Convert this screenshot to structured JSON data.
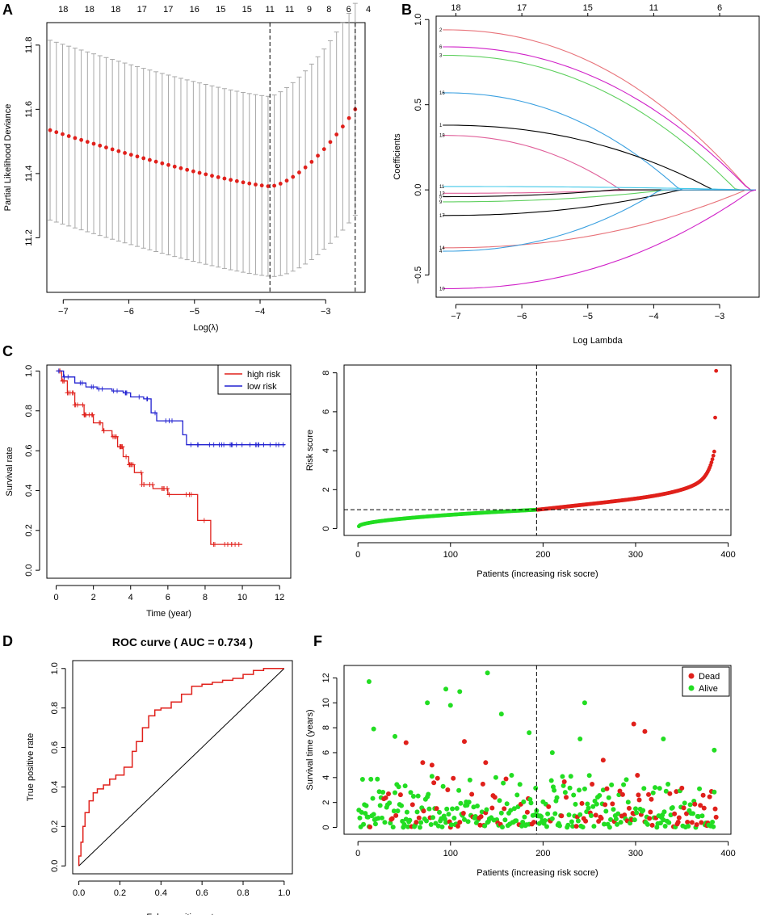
{
  "panel_labels": {
    "a": "A",
    "b": "B",
    "c": "C",
    "d": "D",
    "f": "F"
  },
  "colors": {
    "red": "#e0201b",
    "blue": "#2020d0",
    "green": "#22dd22",
    "grey": "#a8a8a8",
    "black": "#000000"
  },
  "chart_data": [
    {
      "id": "A",
      "type": "line",
      "title": "",
      "xlabel": "Log(λ)",
      "ylabel": "Partial Likelihood Deviance",
      "xlim": [
        -7.25,
        -2.4
      ],
      "ylim": [
        11.03,
        11.87
      ],
      "xticks": [
        -7,
        -6,
        -5,
        -4,
        -3
      ],
      "xtick_labels": [
        "−7",
        "−6",
        "−5",
        "−4",
        "−3"
      ],
      "yticks": [
        11.2,
        11.4,
        11.6,
        11.8
      ],
      "ytick_labels": [
        "11.2",
        "11.4",
        "11.6",
        "11.8"
      ],
      "top_labels": [
        "18",
        "18",
        "18",
        "17",
        "17",
        "16",
        "15",
        "15",
        "11",
        "11",
        "9",
        "8",
        "6",
        "4"
      ],
      "top_label_x": [
        -7.0,
        -6.6,
        -6.2,
        -5.8,
        -5.4,
        -5.0,
        -4.6,
        -4.2,
        -3.85,
        -3.55,
        -3.25,
        -2.95,
        -2.65,
        -2.35
      ],
      "vlines": [
        -3.85,
        -2.55
      ],
      "min_lambda": -3.85,
      "min_value": 11.36,
      "x_start": -7.2,
      "x_end": -2.55,
      "n_points": 50
    },
    {
      "id": "B",
      "type": "line",
      "xlabel": "Log Lambda",
      "ylabel": "Coefficients",
      "xlim": [
        -7.3,
        -2.4
      ],
      "ylim": [
        -0.63,
        1.02
      ],
      "xticks": [
        -7,
        -6,
        -5,
        -4,
        -3
      ],
      "xtick_labels": [
        "−7",
        "−6",
        "−5",
        "−4",
        "−3"
      ],
      "yticks": [
        -0.5,
        0.0,
        0.5,
        1.0
      ],
      "ytick_labels": [
        "−0.5",
        "0.0",
        "0.5",
        "1.0"
      ],
      "top_labels": [
        "18",
        "17",
        "15",
        "11",
        "6"
      ],
      "top_label_x": [
        -7.0,
        -6.0,
        -5.0,
        -4.0,
        -3.0
      ],
      "series": [
        {
          "name": "2",
          "color": "#e8737a",
          "start": 0.94,
          "zero_at": -2.55
        },
        {
          "name": "6",
          "color": "#d020c8",
          "start": 0.84,
          "zero_at": -2.55
        },
        {
          "name": "3",
          "color": "#5fd05f",
          "start": 0.79,
          "zero_at": -2.75
        },
        {
          "name": "16",
          "color": "#3aa0e0",
          "start": 0.57,
          "zero_at": -3.6
        },
        {
          "name": "1",
          "color": "#000000",
          "start": 0.38,
          "zero_at": -3.1
        },
        {
          "name": "18",
          "color": "#e0609a",
          "start": 0.32,
          "zero_at": -4.5
        },
        {
          "name": "11",
          "color": "#40c8e8",
          "start": 0.02,
          "zero_at": -2.55
        },
        {
          "name": "12",
          "color": "#e0609a",
          "start": -0.02,
          "zero_at": -4.3
        },
        {
          "name": "5",
          "color": "#000000",
          "start": -0.04,
          "zero_at": -4.6
        },
        {
          "name": "9",
          "color": "#5fd05f",
          "start": -0.07,
          "zero_at": -3.8
        },
        {
          "name": "17",
          "color": "#000000",
          "start": -0.15,
          "zero_at": -3.6
        },
        {
          "name": "14",
          "color": "#e8737a",
          "start": -0.34,
          "zero_at": -2.6
        },
        {
          "name": "4",
          "color": "#3aa0e0",
          "start": -0.36,
          "zero_at": -3.9
        },
        {
          "name": "10",
          "color": "#d020c8",
          "start": -0.58,
          "zero_at": -2.5
        }
      ]
    },
    {
      "id": "C-left",
      "type": "line",
      "xlabel": "Time (year)",
      "ylabel": "Survival rate",
      "xlim": [
        -0.5,
        12.6
      ],
      "ylim": [
        -0.04,
        1.03
      ],
      "xticks": [
        0,
        2,
        4,
        6,
        8,
        10,
        12
      ],
      "xtick_labels": [
        "0",
        "2",
        "4",
        "6",
        "8",
        "10",
        "12"
      ],
      "yticks": [
        0.0,
        0.2,
        0.4,
        0.6,
        0.8,
        1.0
      ],
      "ytick_labels": [
        "0.0",
        "0.2",
        "0.4",
        "0.6",
        "0.8",
        "1.0"
      ],
      "legend": [
        "high risk",
        "low risk"
      ],
      "series": [
        {
          "name": "high risk",
          "color": "#e0201b",
          "x": [
            0,
            0.3,
            0.6,
            1,
            1.5,
            2,
            2.5,
            3,
            3.3,
            3.6,
            3.9,
            4.2,
            4.6,
            5.2,
            6,
            7,
            7.6,
            8.3,
            10
          ],
          "y": [
            1.0,
            0.95,
            0.89,
            0.83,
            0.78,
            0.74,
            0.7,
            0.67,
            0.62,
            0.57,
            0.53,
            0.49,
            0.43,
            0.41,
            0.38,
            0.38,
            0.25,
            0.13,
            0.13
          ]
        },
        {
          "name": "low risk",
          "color": "#2020d0",
          "x": [
            0,
            0.4,
            1,
            1.6,
            2.2,
            3,
            3.6,
            4,
            4.7,
            5.1,
            5.4,
            6.8,
            7,
            12.3
          ],
          "y": [
            1.0,
            0.97,
            0.94,
            0.92,
            0.91,
            0.9,
            0.89,
            0.87,
            0.86,
            0.79,
            0.75,
            0.68,
            0.63,
            0.63
          ]
        }
      ]
    },
    {
      "id": "C-right",
      "type": "scatter",
      "xlabel": "Patients (increasing risk socre)",
      "ylabel": "Risk score",
      "xlim": [
        -15,
        403
      ],
      "ylim": [
        -0.35,
        8.4
      ],
      "xticks": [
        0,
        100,
        200,
        300,
        400
      ],
      "xtick_labels": [
        "0",
        "100",
        "200",
        "300",
        "400"
      ],
      "yticks": [
        0,
        2,
        4,
        6,
        8
      ],
      "ytick_labels": [
        "0",
        "2",
        "4",
        "6",
        "8"
      ],
      "n_patients": 387,
      "cutoff_index": 193,
      "cutoff_value": 0.97,
      "max_value": 8.1
    },
    {
      "id": "D",
      "type": "line",
      "title": "ROC curve ( AUC =  0.734 )",
      "xlabel": "False positive rate",
      "ylabel": "True positive rate",
      "xlim": [
        -0.03,
        1.04
      ],
      "ylim": [
        -0.04,
        1.04
      ],
      "xticks": [
        0.0,
        0.2,
        0.4,
        0.6,
        0.8,
        1.0
      ],
      "xtick_labels": [
        "0.0",
        "0.2",
        "0.4",
        "0.6",
        "0.8",
        "1.0"
      ],
      "yticks": [
        0.0,
        0.2,
        0.4,
        0.6,
        0.8,
        1.0
      ],
      "ytick_labels": [
        "0.0",
        "0.2",
        "0.4",
        "0.6",
        "0.8",
        "1.0"
      ],
      "auc": 0.734,
      "fpr": [
        0,
        0.01,
        0.02,
        0.03,
        0.05,
        0.07,
        0.09,
        0.12,
        0.15,
        0.18,
        0.22,
        0.26,
        0.28,
        0.31,
        0.34,
        0.37,
        0.4,
        0.45,
        0.5,
        0.55,
        0.6,
        0.65,
        0.7,
        0.75,
        0.8,
        0.85,
        0.9,
        0.95,
        1.0
      ],
      "tpr": [
        0,
        0.05,
        0.12,
        0.2,
        0.27,
        0.33,
        0.37,
        0.39,
        0.41,
        0.44,
        0.46,
        0.5,
        0.58,
        0.63,
        0.7,
        0.76,
        0.79,
        0.8,
        0.83,
        0.87,
        0.91,
        0.92,
        0.93,
        0.94,
        0.95,
        0.97,
        0.99,
        1.0,
        1.0
      ]
    },
    {
      "id": "F",
      "type": "scatter",
      "xlabel": "Patients (increasing risk socre)",
      "ylabel": "Survival time (years)",
      "xlim": [
        -15,
        403
      ],
      "ylim": [
        -0.55,
        13.0
      ],
      "xticks": [
        0,
        100,
        200,
        300,
        400
      ],
      "xtick_labels": [
        "0",
        "100",
        "200",
        "300",
        "400"
      ],
      "yticks": [
        0,
        2,
        4,
        6,
        8,
        10,
        12
      ],
      "ytick_labels": [
        "0",
        "2",
        "4",
        "6",
        "8",
        "10",
        "12"
      ],
      "legend": [
        "Dead",
        "Alive"
      ],
      "n_patients": 387,
      "cutoff_index": 193,
      "outliers": [
        {
          "x": 12,
          "y": 11.7,
          "status": "Alive"
        },
        {
          "x": 95,
          "y": 11.1,
          "status": "Alive"
        },
        {
          "x": 110,
          "y": 10.9,
          "status": "Alive"
        },
        {
          "x": 140,
          "y": 12.4,
          "status": "Alive"
        },
        {
          "x": 100,
          "y": 9.8,
          "status": "Alive"
        },
        {
          "x": 75,
          "y": 10.0,
          "status": "Alive"
        },
        {
          "x": 155,
          "y": 9.1,
          "status": "Alive"
        },
        {
          "x": 245,
          "y": 10.0,
          "status": "Alive"
        },
        {
          "x": 298,
          "y": 8.3,
          "status": "Dead"
        },
        {
          "x": 310,
          "y": 7.7,
          "status": "Dead"
        },
        {
          "x": 17,
          "y": 7.9,
          "status": "Alive"
        },
        {
          "x": 115,
          "y": 6.9,
          "status": "Dead"
        },
        {
          "x": 52,
          "y": 6.8,
          "status": "Dead"
        },
        {
          "x": 385,
          "y": 6.2,
          "status": "Alive"
        },
        {
          "x": 265,
          "y": 5.4,
          "status": "Dead"
        },
        {
          "x": 70,
          "y": 5.2,
          "status": "Dead"
        },
        {
          "x": 240,
          "y": 7.1,
          "status": "Alive"
        },
        {
          "x": 330,
          "y": 7.1,
          "status": "Alive"
        },
        {
          "x": 185,
          "y": 7.6,
          "status": "Alive"
        },
        {
          "x": 210,
          "y": 6.0,
          "status": "Alive"
        },
        {
          "x": 40,
          "y": 7.3,
          "status": "Alive"
        },
        {
          "x": 138,
          "y": 5.2,
          "status": "Dead"
        },
        {
          "x": 80,
          "y": 5.0,
          "status": "Dead"
        }
      ]
    }
  ]
}
